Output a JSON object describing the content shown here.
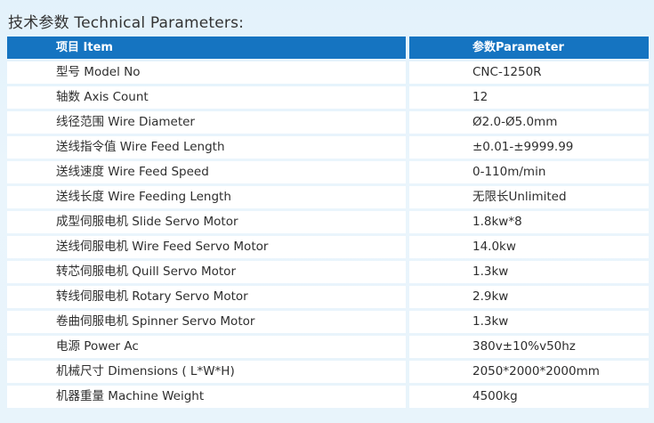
{
  "title": "技术参数 Technical Parameters:",
  "table": {
    "headers": [
      "项目 Item",
      "参数Parameter"
    ],
    "rows": [
      [
        "型号 Model No",
        "CNC-1250R"
      ],
      [
        "轴数 Axis Count",
        "12"
      ],
      [
        "线径范围 Wire Diameter",
        "Ø2.0-Ø5.0mm"
      ],
      [
        "送线指令值 Wire Feed Length",
        "±0.01-±9999.99"
      ],
      [
        "送线速度    Wire Feed Speed",
        "0-110m/min"
      ],
      [
        "送线长度 Wire Feeding Length",
        "无限长Unlimited"
      ],
      [
        "成型伺服电机 Slide Servo Motor",
        "1.8kw*8"
      ],
      [
        "送线伺服电机 Wire Feed Servo Motor",
        "14.0kw"
      ],
      [
        "转芯伺服电机 Quill Servo Motor",
        "1.3kw"
      ],
      [
        "转线伺服电机 Rotary Servo Motor",
        "2.9kw"
      ],
      [
        "卷曲伺服电机 Spinner Servo Motor",
        "1.3kw"
      ],
      [
        "电源 Power Ac",
        "380v±10%v50hz"
      ],
      [
        "机械尺寸 Dimensions ( L*W*H)",
        "2050*2000*2000mm"
      ],
      [
        "机器重量 Machine  Weight",
        "4500kg"
      ]
    ]
  }
}
